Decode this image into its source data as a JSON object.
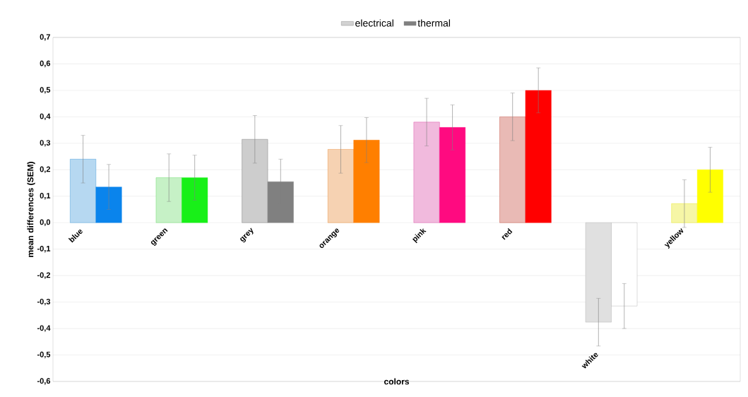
{
  "chart_data": {
    "type": "bar",
    "xlabel": "colors",
    "ylabel": "mean differences (SEM)",
    "categories": [
      "blue",
      "green",
      "grey",
      "orange",
      "pink",
      "red",
      "white",
      "yellow"
    ],
    "series": [
      {
        "name": "electrical",
        "color": "#7f7f7f",
        "colors": [
          "#2e8fd6",
          "#5bd65b",
          "#6f6f6f",
          "#e67e22",
          "#d63a9e",
          "#c0392b",
          "#a6a6a6",
          "#e6e600"
        ],
        "values": [
          0.24,
          0.17,
          0.315,
          0.277,
          0.38,
          0.4,
          -0.376,
          0.072
        ],
        "errors": [
          0.09,
          0.09,
          0.09,
          0.09,
          0.09,
          0.09,
          0.09,
          0.09
        ]
      },
      {
        "name": "thermal",
        "color": "#808080",
        "colors": [
          "#0a84ec",
          "#18f018",
          "#808080",
          "#ff7f00",
          "#ff0a80",
          "#ff0000",
          "#ffffff",
          "#ffff00"
        ],
        "values": [
          0.135,
          0.17,
          0.155,
          0.312,
          0.36,
          0.5,
          -0.315,
          0.2
        ],
        "errors": [
          0.085,
          0.085,
          0.085,
          0.085,
          0.085,
          0.085,
          0.085,
          0.085
        ]
      }
    ],
    "ylim": [
      -0.6,
      0.7
    ],
    "yticks": [
      {
        "value": -0.6,
        "label": "-0,6"
      },
      {
        "value": -0.5,
        "label": "-0,5"
      },
      {
        "value": -0.4,
        "label": "-0,4"
      },
      {
        "value": -0.3,
        "label": "-0,3"
      },
      {
        "value": -0.2,
        "label": "-0,2"
      },
      {
        "value": -0.1,
        "label": "-0,1"
      },
      {
        "value": 0,
        "label": "0,0"
      },
      {
        "value": 0.1,
        "label": "0,1"
      },
      {
        "value": 0.2,
        "label": "0,2"
      },
      {
        "value": 0.3,
        "label": "0,3"
      },
      {
        "value": 0.4,
        "label": "0,4"
      },
      {
        "value": 0.5,
        "label": "0,5"
      },
      {
        "value": 0.6,
        "label": "0,6"
      },
      {
        "value": 0.7,
        "label": "0,7"
      }
    ],
    "grid": "y",
    "legend": "top"
  }
}
